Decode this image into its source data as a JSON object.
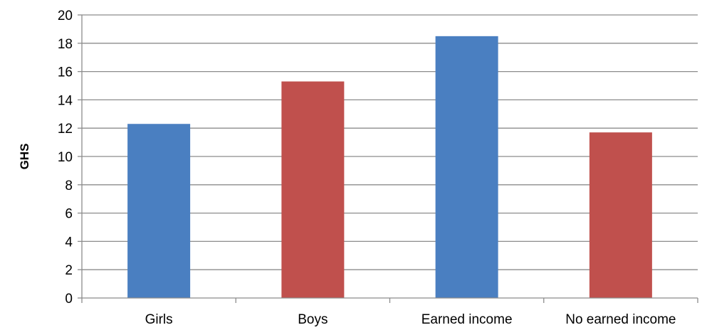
{
  "chart_data": {
    "type": "bar",
    "title": "",
    "xlabel": "",
    "ylabel": "GHS",
    "categories": [
      "Girls",
      "Boys",
      "Earned income",
      "No earned income"
    ],
    "values": [
      12.3,
      15.3,
      18.5,
      11.7
    ],
    "bar_colors": [
      "#4a7fc1",
      "#c0504d",
      "#4a7fc1",
      "#c0504d"
    ],
    "ylim": [
      0,
      20
    ],
    "yticks": [
      0,
      2,
      4,
      6,
      8,
      10,
      12,
      14,
      16,
      18,
      20
    ],
    "grid": true,
    "legend": "none"
  }
}
